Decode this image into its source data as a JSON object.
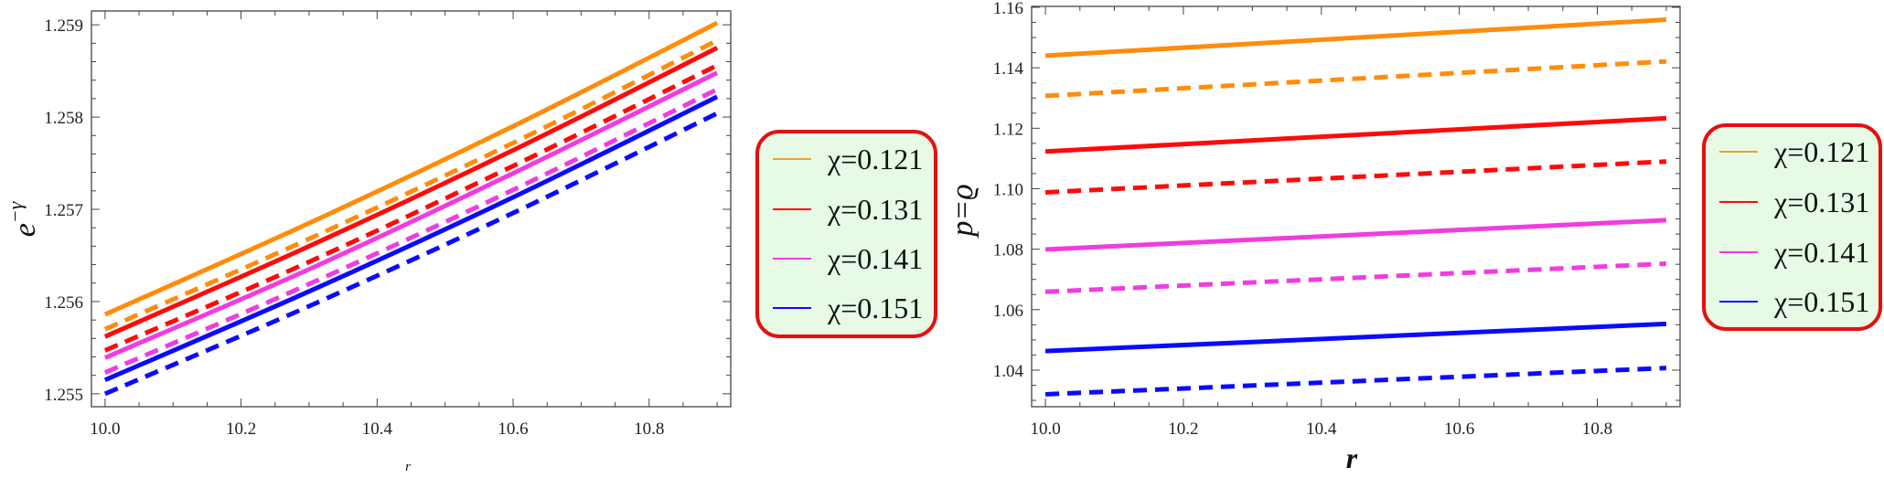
{
  "legend": {
    "entries": [
      {
        "label": "χ=0.121",
        "color": "#ff8c0a"
      },
      {
        "label": "χ=0.131",
        "color": "#ff0a0a"
      },
      {
        "label": "χ=0.141",
        "color": "#f03ce0"
      },
      {
        "label": "χ=0.151",
        "color": "#0a0aff"
      }
    ]
  },
  "chart_data": [
    {
      "type": "line",
      "title": "",
      "xlabel": "r",
      "ylabel": "e^{-γ}",
      "ylabel_base": "e",
      "ylabel_sup": "−γ",
      "xlim": [
        9.98,
        10.92
      ],
      "ylim": [
        1.25486,
        1.25915
      ],
      "xticks": [
        10.0,
        10.2,
        10.4,
        10.6,
        10.8
      ],
      "xtick_labels": [
        "10.0",
        "10.2",
        "10.4",
        "10.6",
        "10.8"
      ],
      "x_minor_step": 0.05,
      "yticks": [
        1.255,
        1.256,
        1.257,
        1.258,
        1.259
      ],
      "ytick_labels": [
        "1.255",
        "1.256",
        "1.257",
        "1.258",
        "1.259"
      ],
      "y_minor_step": 0.0002,
      "grid": false,
      "legend_position": "right-outside",
      "x": [
        10.0,
        10.3,
        10.6,
        10.9
      ],
      "series": [
        {
          "name": "χ=0.121",
          "style": "solid",
          "color": "#ff8c0a",
          "values": [
            1.25586,
            1.25685,
            1.2579,
            1.25902
          ]
        },
        {
          "name": "χ=0.121",
          "style": "dashed",
          "color": "#ff8c0a",
          "values": [
            1.2557,
            1.25668,
            1.25772,
            1.25883
          ]
        },
        {
          "name": "χ=0.131",
          "style": "solid",
          "color": "#ff0a0a",
          "values": [
            1.25562,
            1.2566,
            1.25764,
            1.25875
          ]
        },
        {
          "name": "χ=0.131",
          "style": "dashed",
          "color": "#ff0a0a",
          "values": [
            1.25547,
            1.25643,
            1.25747,
            1.25856
          ]
        },
        {
          "name": "χ=0.141",
          "style": "solid",
          "color": "#f03ce0",
          "values": [
            1.25539,
            1.25635,
            1.25739,
            1.25848
          ]
        },
        {
          "name": "χ=0.141",
          "style": "dashed",
          "color": "#f03ce0",
          "values": [
            1.25523,
            1.25619,
            1.25721,
            1.2583
          ]
        },
        {
          "name": "χ=0.151",
          "style": "solid",
          "color": "#0a0aff",
          "values": [
            1.25515,
            1.25611,
            1.25713,
            1.25822
          ]
        },
        {
          "name": "χ=0.151",
          "style": "dashed",
          "color": "#0a0aff",
          "values": [
            1.255,
            1.25595,
            1.25696,
            1.25804
          ]
        }
      ]
    },
    {
      "type": "line",
      "title": "",
      "xlabel": "r",
      "ylabel": "p=ϱ",
      "xlim": [
        9.98,
        10.92
      ],
      "ylim": [
        1.0279,
        1.1603
      ],
      "xticks": [
        10.0,
        10.2,
        10.4,
        10.6,
        10.8
      ],
      "xtick_labels": [
        "10.0",
        "10.2",
        "10.4",
        "10.6",
        "10.8"
      ],
      "x_minor_step": 0.05,
      "yticks": [
        1.04,
        1.06,
        1.08,
        1.1,
        1.12,
        1.14,
        1.16
      ],
      "ytick_labels": [
        "1.04",
        "1.06",
        "1.08",
        "1.10",
        "1.12",
        "1.14",
        "1.16"
      ],
      "y_minor_step": 0.005,
      "grid": false,
      "legend_position": "right-outside",
      "x": [
        10.0,
        10.9
      ],
      "series": [
        {
          "name": "χ=0.121",
          "style": "solid",
          "color": "#ff8c0a",
          "values": [
            1.144,
            1.1559
          ]
        },
        {
          "name": "χ=0.121",
          "style": "dashed",
          "color": "#ff8c0a",
          "values": [
            1.1307,
            1.1421
          ]
        },
        {
          "name": "χ=0.131",
          "style": "solid",
          "color": "#ff0a0a",
          "values": [
            1.1123,
            1.1233
          ]
        },
        {
          "name": "χ=0.131",
          "style": "dashed",
          "color": "#ff0a0a",
          "values": [
            1.0988,
            1.109
          ]
        },
        {
          "name": "χ=0.141",
          "style": "solid",
          "color": "#f03ce0",
          "values": [
            1.0799,
            1.0896
          ]
        },
        {
          "name": "χ=0.141",
          "style": "dashed",
          "color": "#f03ce0",
          "values": [
            1.0659,
            1.0752
          ]
        },
        {
          "name": "χ=0.151",
          "style": "solid",
          "color": "#0a0aff",
          "values": [
            1.0463,
            1.0553
          ]
        },
        {
          "name": "χ=0.151",
          "style": "dashed",
          "color": "#0a0aff",
          "values": [
            1.032,
            1.0407
          ]
        }
      ]
    }
  ]
}
